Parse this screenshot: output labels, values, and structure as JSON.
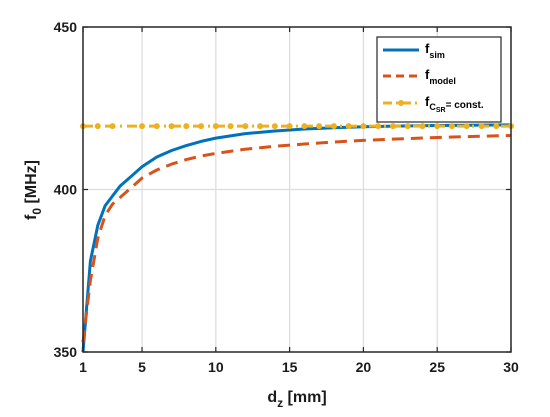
{
  "chart_data": {
    "type": "line",
    "xlabel": {
      "main": "d",
      "sub": "z",
      "unit": " [mm]"
    },
    "ylabel": {
      "main": "f",
      "sub": "0",
      "unit": " [MHz]"
    },
    "xlim": [
      1,
      30
    ],
    "ylim": [
      350,
      450
    ],
    "xticks": [
      1,
      5,
      10,
      15,
      20,
      25,
      30
    ],
    "yticks": [
      350,
      400,
      450
    ],
    "grid": true,
    "legend_position": "top-right",
    "series": [
      {
        "name": "f",
        "name_sub": "sim",
        "color": "#0072BD",
        "style": "solid",
        "x": [
          1,
          1.5,
          2,
          2.5,
          3,
          3.5,
          4,
          5,
          6,
          7,
          8,
          9,
          10,
          12,
          14,
          16,
          18,
          20,
          22,
          25,
          28,
          30
        ],
        "y": [
          350,
          378,
          389,
          395,
          398,
          401,
          403,
          407,
          410,
          412,
          413.5,
          414.8,
          415.8,
          417.2,
          418,
          418.6,
          419,
          419.3,
          419.5,
          419.7,
          419.8,
          419.9
        ]
      },
      {
        "name": "f",
        "name_sub": "model",
        "color": "#D95319",
        "style": "dashed",
        "x": [
          1,
          1.5,
          2,
          2.5,
          3,
          3.5,
          4,
          5,
          6,
          7,
          8,
          9,
          10,
          12,
          14,
          16,
          18,
          20,
          22,
          25,
          28,
          30
        ],
        "y": [
          353,
          372,
          385,
          392,
          395.5,
          397.5,
          399.5,
          403.5,
          406,
          407.8,
          409.2,
          410.3,
          411.1,
          412.4,
          413.3,
          414,
          414.6,
          415.1,
          415.5,
          416,
          416.4,
          416.6
        ]
      },
      {
        "name": "f",
        "name_sub": "C",
        "name_subsub": "SR",
        "name_suffix": "= const.",
        "color": "#EDB120",
        "style": "dashdot-marker",
        "x": [
          1,
          2,
          3,
          5,
          6,
          7,
          8,
          9,
          10,
          11,
          12,
          13,
          14,
          15,
          16,
          17,
          18,
          19,
          20,
          21,
          22,
          23,
          24,
          25,
          26,
          27,
          28,
          29,
          30
        ],
        "y": [
          419.5,
          419.5,
          419.5,
          419.5,
          419.5,
          419.5,
          419.5,
          419.5,
          419.5,
          419.5,
          419.5,
          419.5,
          419.5,
          419.5,
          419.5,
          419.5,
          419.5,
          419.5,
          419.5,
          419.5,
          419.5,
          419.5,
          419.5,
          419.5,
          419.5,
          419.5,
          419.5,
          419.5,
          419.5
        ]
      }
    ]
  }
}
